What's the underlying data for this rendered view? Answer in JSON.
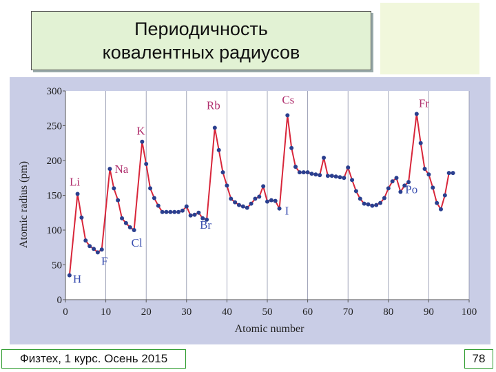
{
  "slide": {
    "title": "Периодичность\nковалентных радиусов",
    "footer_left": "Физтех, 1 курс. Осень 2015",
    "page_number": "78"
  },
  "colors": {
    "line": "#d8263a",
    "marker": "#2a3f8f",
    "element_label": "#b0306e",
    "blue_label": "#3a4fb0",
    "plot_bg": "#ffffff",
    "panel_bg": "#c9cde6",
    "grid": "#8a8fa8"
  },
  "chart_data": {
    "type": "line",
    "xlabel": "Atomic number",
    "ylabel": "Atomic radius (pm)",
    "xlim": [
      0,
      100
    ],
    "ylim": [
      0,
      300
    ],
    "xticks": [
      0,
      10,
      20,
      30,
      40,
      50,
      60,
      70,
      80,
      90,
      100
    ],
    "yticks": [
      0,
      50,
      100,
      150,
      200,
      250,
      300
    ],
    "grid": "vertical",
    "x": [
      1,
      3,
      4,
      5,
      6,
      7,
      8,
      9,
      11,
      12,
      13,
      14,
      15,
      16,
      17,
      19,
      20,
      21,
      22,
      23,
      24,
      25,
      26,
      27,
      28,
      29,
      30,
      31,
      32,
      33,
      34,
      35,
      37,
      38,
      39,
      40,
      41,
      42,
      43,
      44,
      45,
      46,
      47,
      48,
      49,
      50,
      51,
      52,
      53,
      55,
      56,
      57,
      58,
      59,
      60,
      61,
      62,
      63,
      64,
      65,
      66,
      67,
      68,
      69,
      70,
      71,
      72,
      73,
      74,
      75,
      76,
      77,
      78,
      79,
      80,
      81,
      82,
      83,
      84,
      85,
      87,
      88,
      89,
      90,
      91,
      92,
      93,
      94,
      95,
      96
    ],
    "y": [
      35,
      152,
      118,
      85,
      77,
      73,
      68,
      72,
      188,
      160,
      143,
      117,
      110,
      104,
      100,
      227,
      195,
      160,
      146,
      135,
      126,
      126,
      126,
      126,
      126,
      128,
      134,
      121,
      122,
      125,
      117,
      115,
      247,
      215,
      183,
      164,
      145,
      140,
      136,
      134,
      132,
      138,
      145,
      148,
      163,
      141,
      143,
      142,
      131,
      265,
      218,
      191,
      183,
      183,
      183,
      181,
      180,
      179,
      204,
      178,
      178,
      177,
      176,
      175,
      190,
      172,
      156,
      145,
      138,
      137,
      135,
      136,
      139,
      146,
      160,
      170,
      175,
      155,
      164,
      169,
      267,
      225,
      188,
      180,
      161,
      139,
      130,
      150,
      182,
      182
    ],
    "labels": [
      {
        "text": "H",
        "x": 1,
        "y": 35,
        "color": "blue"
      },
      {
        "text": "Li",
        "x": 3,
        "y": 152,
        "color": "pink"
      },
      {
        "text": "F",
        "x": 9,
        "y": 72,
        "color": "blue"
      },
      {
        "text": "Na",
        "x": 11,
        "y": 188,
        "color": "pink"
      },
      {
        "text": "Cl",
        "x": 17,
        "y": 100,
        "color": "blue"
      },
      {
        "text": "K",
        "x": 19,
        "y": 227,
        "color": "pink"
      },
      {
        "text": "Br",
        "x": 35,
        "y": 115,
        "color": "blue"
      },
      {
        "text": "Rb",
        "x": 37,
        "y": 247,
        "color": "pink"
      },
      {
        "text": "I",
        "x": 53,
        "y": 131,
        "color": "blue"
      },
      {
        "text": "Cs",
        "x": 55,
        "y": 265,
        "color": "pink"
      },
      {
        "text": "Po",
        "x": 84,
        "y": 164,
        "color": "blue"
      },
      {
        "text": "Fr",
        "x": 87,
        "y": 267,
        "color": "pink"
      }
    ]
  }
}
